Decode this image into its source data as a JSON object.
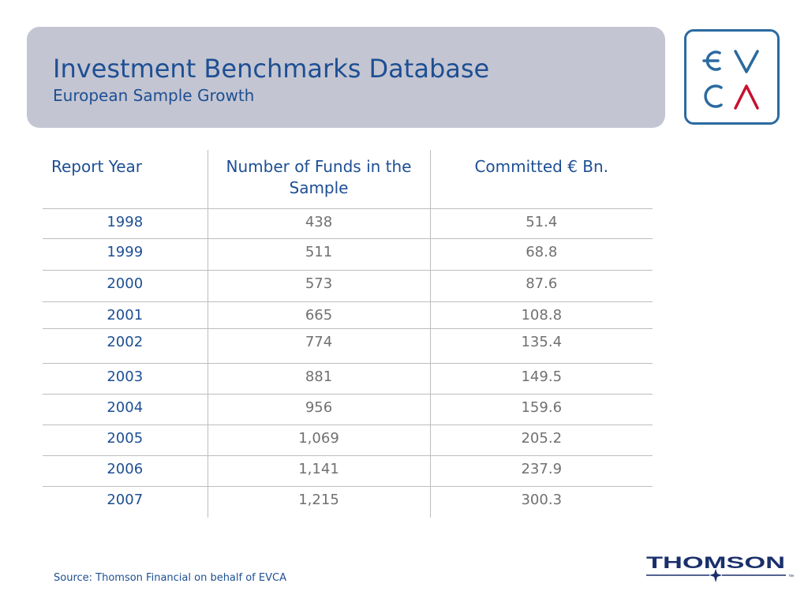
{
  "header": {
    "title": "Investment Benchmarks Database",
    "subtitle": "European Sample Growth"
  },
  "logos": {
    "evca_text": "EVCA",
    "thomson_text": "THOMSON",
    "thomson_mark": "™"
  },
  "colors": {
    "title_blue": "#1d4f93",
    "header_band": "#c4c5d2",
    "logo_blue": "#2b6aa0",
    "logo_red": "#c8102e",
    "thomson_navy": "#1a2f6b"
  },
  "table": {
    "headers": [
      "Report Year",
      "Number of Funds in the Sample",
      "Committed € Bn."
    ],
    "rows": [
      [
        "1998",
        "438",
        "51.4"
      ],
      [
        "1999",
        "511",
        "68.8"
      ],
      [
        "2000",
        "573",
        "87.6"
      ],
      [
        "2001",
        "665",
        "108.8"
      ],
      [
        "2002",
        "774",
        "135.4"
      ],
      [
        "2003",
        "881",
        "149.5"
      ],
      [
        "2004",
        "956",
        "159.6"
      ],
      [
        "2005",
        "1,069",
        "205.2"
      ],
      [
        "2006",
        "1,141",
        "237.9"
      ],
      [
        "2007",
        "1,215",
        "300.3"
      ]
    ]
  },
  "footer": {
    "source": "Source: Thomson Financial on behalf of EVCA"
  }
}
